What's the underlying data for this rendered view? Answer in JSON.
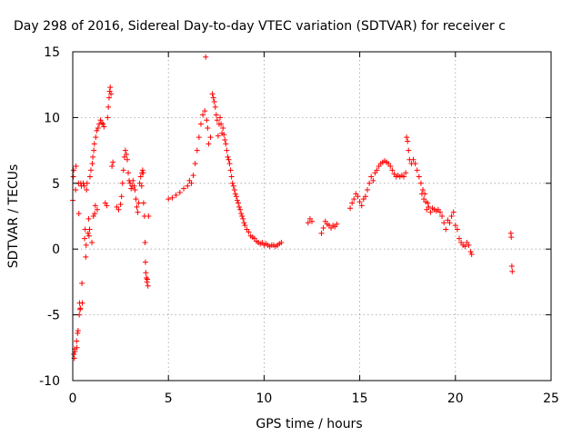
{
  "chart_data": {
    "type": "scatter",
    "title": "Day 298 of 2016, Sidereal Day-to-day VTEC variation (SDTVAR) for receiver c",
    "xlabel": "GPS time / hours",
    "ylabel": "SDTVAR / TECUs",
    "xlim": [
      0,
      25
    ],
    "ylim": [
      -10,
      15
    ],
    "xticks": [
      0,
      5,
      10,
      15,
      20,
      25
    ],
    "yticks": [
      -10,
      -5,
      0,
      5,
      10,
      15
    ],
    "xtick_labels": [
      "0",
      "5",
      "10",
      "15",
      "20",
      "25"
    ],
    "ytick_labels": [
      "-10",
      "-5",
      "0",
      "5",
      "10",
      "15"
    ],
    "grid": true,
    "marker": "plus",
    "color": "#ff0000",
    "series": [
      {
        "points": [
          [
            0.0,
            3.7
          ],
          [
            0.03,
            5.5
          ],
          [
            0.05,
            6.0
          ],
          [
            0.06,
            -8.0
          ],
          [
            0.08,
            -8.3
          ],
          [
            0.1,
            -7.6
          ],
          [
            0.12,
            -7.8
          ],
          [
            0.15,
            4.5
          ],
          [
            0.17,
            6.3
          ],
          [
            0.2,
            -7.0
          ],
          [
            0.22,
            -7.5
          ],
          [
            0.25,
            -6.4
          ],
          [
            0.28,
            -6.2
          ],
          [
            0.3,
            5.0
          ],
          [
            0.32,
            2.7
          ],
          [
            0.34,
            -5.0
          ],
          [
            0.36,
            -4.1
          ],
          [
            0.38,
            -4.6
          ],
          [
            0.4,
            -4.5
          ],
          [
            0.42,
            5.0
          ],
          [
            0.45,
            4.8
          ],
          [
            0.48,
            -2.6
          ],
          [
            0.5,
            -4.1
          ],
          [
            0.55,
            5.0
          ],
          [
            0.6,
            4.8
          ],
          [
            0.62,
            0.8
          ],
          [
            0.65,
            1.5
          ],
          [
            0.68,
            -0.6
          ],
          [
            0.7,
            0.3
          ],
          [
            0.72,
            4.5
          ],
          [
            0.75,
            5.0
          ],
          [
            0.8,
            1.2
          ],
          [
            0.83,
            2.3
          ],
          [
            0.85,
            1.0
          ],
          [
            0.88,
            1.5
          ],
          [
            0.9,
            5.5
          ],
          [
            0.95,
            6.0
          ],
          [
            1.0,
            0.5
          ],
          [
            1.02,
            6.5
          ],
          [
            1.05,
            7.0
          ],
          [
            1.08,
            2.5
          ],
          [
            1.1,
            7.5
          ],
          [
            1.13,
            8.0
          ],
          [
            1.15,
            2.7
          ],
          [
            1.18,
            3.3
          ],
          [
            1.2,
            8.5
          ],
          [
            1.25,
            9.0
          ],
          [
            1.28,
            3.0
          ],
          [
            1.32,
            9.2
          ],
          [
            1.38,
            9.5
          ],
          [
            1.45,
            9.8
          ],
          [
            1.52,
            9.6
          ],
          [
            1.58,
            9.5
          ],
          [
            1.63,
            9.3
          ],
          [
            1.7,
            3.5
          ],
          [
            1.78,
            3.3
          ],
          [
            1.82,
            10.0
          ],
          [
            1.86,
            10.8
          ],
          [
            1.9,
            11.5
          ],
          [
            1.93,
            12.0
          ],
          [
            1.96,
            12.3
          ],
          [
            2.0,
            11.8
          ],
          [
            2.05,
            6.3
          ],
          [
            2.1,
            6.6
          ],
          [
            2.3,
            3.2
          ],
          [
            2.4,
            3.0
          ],
          [
            2.5,
            3.4
          ],
          [
            2.55,
            4.0
          ],
          [
            2.6,
            5.0
          ],
          [
            2.65,
            6.0
          ],
          [
            2.7,
            7.0
          ],
          [
            2.75,
            7.5
          ],
          [
            2.8,
            7.2
          ],
          [
            2.85,
            6.8
          ],
          [
            2.9,
            5.8
          ],
          [
            2.95,
            5.2
          ],
          [
            3.0,
            5.0
          ],
          [
            3.05,
            4.6
          ],
          [
            3.1,
            4.8
          ],
          [
            3.15,
            5.2
          ],
          [
            3.2,
            4.8
          ],
          [
            3.25,
            4.5
          ],
          [
            3.3,
            3.8
          ],
          [
            3.35,
            3.2
          ],
          [
            3.4,
            2.8
          ],
          [
            3.45,
            3.5
          ],
          [
            3.5,
            5.0
          ],
          [
            3.55,
            5.5
          ],
          [
            3.6,
            4.8
          ],
          [
            3.62,
            5.8
          ],
          [
            3.65,
            6.0
          ],
          [
            3.68,
            5.8
          ],
          [
            3.7,
            3.5
          ],
          [
            3.75,
            2.5
          ],
          [
            3.78,
            0.5
          ],
          [
            3.8,
            -1.0
          ],
          [
            3.82,
            -1.8
          ],
          [
            3.85,
            -2.2
          ],
          [
            3.88,
            -2.5
          ],
          [
            3.9,
            -2.3
          ],
          [
            3.93,
            -2.8
          ],
          [
            3.96,
            2.5
          ],
          [
            5.0,
            3.8
          ],
          [
            5.2,
            3.9
          ],
          [
            5.4,
            4.1
          ],
          [
            5.6,
            4.3
          ],
          [
            5.8,
            4.6
          ],
          [
            6.0,
            4.8
          ],
          [
            6.1,
            5.2
          ],
          [
            6.2,
            5.0
          ],
          [
            6.3,
            5.6
          ],
          [
            6.4,
            6.5
          ],
          [
            6.5,
            7.5
          ],
          [
            6.6,
            8.5
          ],
          [
            6.7,
            9.5
          ],
          [
            6.8,
            10.2
          ],
          [
            6.9,
            10.5
          ],
          [
            6.95,
            14.6
          ],
          [
            7.0,
            9.8
          ],
          [
            7.05,
            9.2
          ],
          [
            7.1,
            8.0
          ],
          [
            7.2,
            8.5
          ],
          [
            7.3,
            11.8
          ],
          [
            7.35,
            11.5
          ],
          [
            7.4,
            11.2
          ],
          [
            7.45,
            10.8
          ],
          [
            7.5,
            10.2
          ],
          [
            7.55,
            9.8
          ],
          [
            7.6,
            8.6
          ],
          [
            7.65,
            9.5
          ],
          [
            7.7,
            10.0
          ],
          [
            7.75,
            9.5
          ],
          [
            7.8,
            8.8
          ],
          [
            7.85,
            9.2
          ],
          [
            7.9,
            8.7
          ],
          [
            7.95,
            8.3
          ],
          [
            8.0,
            8.0
          ],
          [
            8.05,
            7.5
          ],
          [
            8.1,
            7.0
          ],
          [
            8.15,
            6.8
          ],
          [
            8.2,
            6.5
          ],
          [
            8.25,
            6.0
          ],
          [
            8.3,
            5.5
          ],
          [
            8.35,
            5.0
          ],
          [
            8.4,
            4.8
          ],
          [
            8.45,
            4.5
          ],
          [
            8.5,
            4.2
          ],
          [
            8.55,
            4.0
          ],
          [
            8.6,
            3.7
          ],
          [
            8.65,
            3.5
          ],
          [
            8.7,
            3.2
          ],
          [
            8.75,
            3.0
          ],
          [
            8.8,
            2.7
          ],
          [
            8.85,
            2.5
          ],
          [
            8.9,
            2.3
          ],
          [
            8.95,
            2.0
          ],
          [
            9.0,
            1.8
          ],
          [
            9.1,
            1.5
          ],
          [
            9.2,
            1.3
          ],
          [
            9.3,
            1.0
          ],
          [
            9.4,
            0.9
          ],
          [
            9.5,
            0.8
          ],
          [
            9.6,
            0.6
          ],
          [
            9.7,
            0.5
          ],
          [
            9.8,
            0.4
          ],
          [
            9.9,
            0.5
          ],
          [
            10.0,
            0.3
          ],
          [
            10.1,
            0.4
          ],
          [
            10.2,
            0.3
          ],
          [
            10.3,
            0.2
          ],
          [
            10.4,
            0.3
          ],
          [
            10.5,
            0.3
          ],
          [
            10.6,
            0.2
          ],
          [
            10.7,
            0.3
          ],
          [
            10.8,
            0.4
          ],
          [
            10.9,
            0.5
          ],
          [
            12.3,
            2.0
          ],
          [
            12.4,
            2.3
          ],
          [
            12.5,
            2.1
          ],
          [
            13.0,
            1.2
          ],
          [
            13.1,
            1.6
          ],
          [
            13.2,
            2.1
          ],
          [
            13.3,
            1.9
          ],
          [
            13.4,
            1.8
          ],
          [
            13.5,
            1.6
          ],
          [
            13.6,
            1.8
          ],
          [
            13.7,
            1.7
          ],
          [
            13.8,
            1.9
          ],
          [
            14.5,
            3.1
          ],
          [
            14.6,
            3.5
          ],
          [
            14.7,
            3.8
          ],
          [
            14.8,
            4.2
          ],
          [
            14.9,
            4.0
          ],
          [
            15.0,
            3.6
          ],
          [
            15.1,
            3.3
          ],
          [
            15.2,
            3.8
          ],
          [
            15.3,
            4.0
          ],
          [
            15.4,
            4.5
          ],
          [
            15.5,
            5.0
          ],
          [
            15.6,
            5.5
          ],
          [
            15.7,
            5.2
          ],
          [
            15.8,
            5.8
          ],
          [
            15.9,
            6.0
          ],
          [
            16.0,
            6.3
          ],
          [
            16.1,
            6.5
          ],
          [
            16.2,
            6.6
          ],
          [
            16.3,
            6.7
          ],
          [
            16.4,
            6.6
          ],
          [
            16.5,
            6.5
          ],
          [
            16.6,
            6.3
          ],
          [
            16.7,
            6.0
          ],
          [
            16.8,
            5.7
          ],
          [
            16.9,
            5.5
          ],
          [
            17.0,
            5.6
          ],
          [
            17.1,
            5.5
          ],
          [
            17.2,
            5.6
          ],
          [
            17.3,
            5.5
          ],
          [
            17.4,
            5.8
          ],
          [
            17.45,
            8.5
          ],
          [
            17.5,
            8.2
          ],
          [
            17.55,
            7.5
          ],
          [
            17.6,
            6.8
          ],
          [
            17.7,
            6.5
          ],
          [
            17.8,
            6.8
          ],
          [
            17.9,
            6.5
          ],
          [
            18.0,
            6.0
          ],
          [
            18.1,
            5.5
          ],
          [
            18.2,
            5.0
          ],
          [
            18.25,
            4.2
          ],
          [
            18.3,
            4.5
          ],
          [
            18.35,
            3.8
          ],
          [
            18.4,
            4.2
          ],
          [
            18.45,
            3.6
          ],
          [
            18.5,
            3.0
          ],
          [
            18.55,
            3.5
          ],
          [
            18.6,
            3.2
          ],
          [
            18.7,
            2.8
          ],
          [
            18.8,
            3.1
          ],
          [
            18.9,
            3.0
          ],
          [
            19.0,
            2.9
          ],
          [
            19.1,
            3.0
          ],
          [
            19.2,
            2.8
          ],
          [
            19.3,
            2.5
          ],
          [
            19.4,
            2.0
          ],
          [
            19.5,
            1.5
          ],
          [
            19.6,
            2.2
          ],
          [
            19.7,
            2.0
          ],
          [
            19.8,
            2.5
          ],
          [
            19.9,
            2.8
          ],
          [
            20.0,
            1.8
          ],
          [
            20.1,
            1.5
          ],
          [
            20.2,
            0.8
          ],
          [
            20.3,
            0.5
          ],
          [
            20.4,
            0.3
          ],
          [
            20.5,
            0.2
          ],
          [
            20.6,
            0.5
          ],
          [
            20.7,
            0.3
          ],
          [
            20.8,
            -0.2
          ],
          [
            20.85,
            -0.4
          ],
          [
            22.9,
            1.2
          ],
          [
            22.92,
            0.9
          ],
          [
            22.95,
            -1.3
          ],
          [
            22.97,
            -1.7
          ]
        ]
      }
    ]
  }
}
